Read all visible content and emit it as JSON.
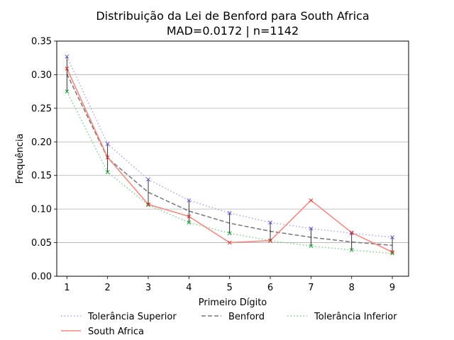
{
  "chart_data": {
    "type": "line",
    "title_line1": "Distribuição da Lei de Benford para South Africa",
    "title_line2": "MAD=0.0172 | n=1142",
    "xlabel": "Primeiro Dígito",
    "ylabel": "Frequência",
    "x": [
      1,
      2,
      3,
      4,
      5,
      6,
      7,
      8,
      9
    ],
    "xlim": [
      0.75,
      9.4
    ],
    "ylim": [
      0,
      0.35
    ],
    "yticks": [
      "0.00",
      "0.05",
      "0.10",
      "0.15",
      "0.20",
      "0.25",
      "0.30",
      "0.35"
    ],
    "grid": "horizontal",
    "legend_position": "bottom",
    "series": [
      {
        "name": "Tolerância Superior",
        "color": "#aaa6f2",
        "style": "dotted",
        "marker": "x-purple",
        "values": [
          0.327,
          0.197,
          0.144,
          0.113,
          0.094,
          0.08,
          0.071,
          0.064,
          0.058
        ]
      },
      {
        "name": "Benford",
        "color": "#777777",
        "style": "dashed",
        "marker": "none",
        "values": [
          0.301,
          0.176,
          0.125,
          0.097,
          0.079,
          0.067,
          0.058,
          0.051,
          0.046
        ]
      },
      {
        "name": "Tolerância Inferior",
        "color": "#7fcf8e",
        "style": "dotted",
        "marker": "x-green",
        "values": [
          0.275,
          0.155,
          0.106,
          0.08,
          0.064,
          0.053,
          0.045,
          0.039,
          0.034
        ]
      },
      {
        "name": "South Africa",
        "color": "#f28b82",
        "style": "solid",
        "marker": "x-red",
        "values": [
          0.309,
          0.177,
          0.107,
          0.089,
          0.05,
          0.053,
          0.113,
          0.065,
          0.036
        ]
      }
    ]
  }
}
